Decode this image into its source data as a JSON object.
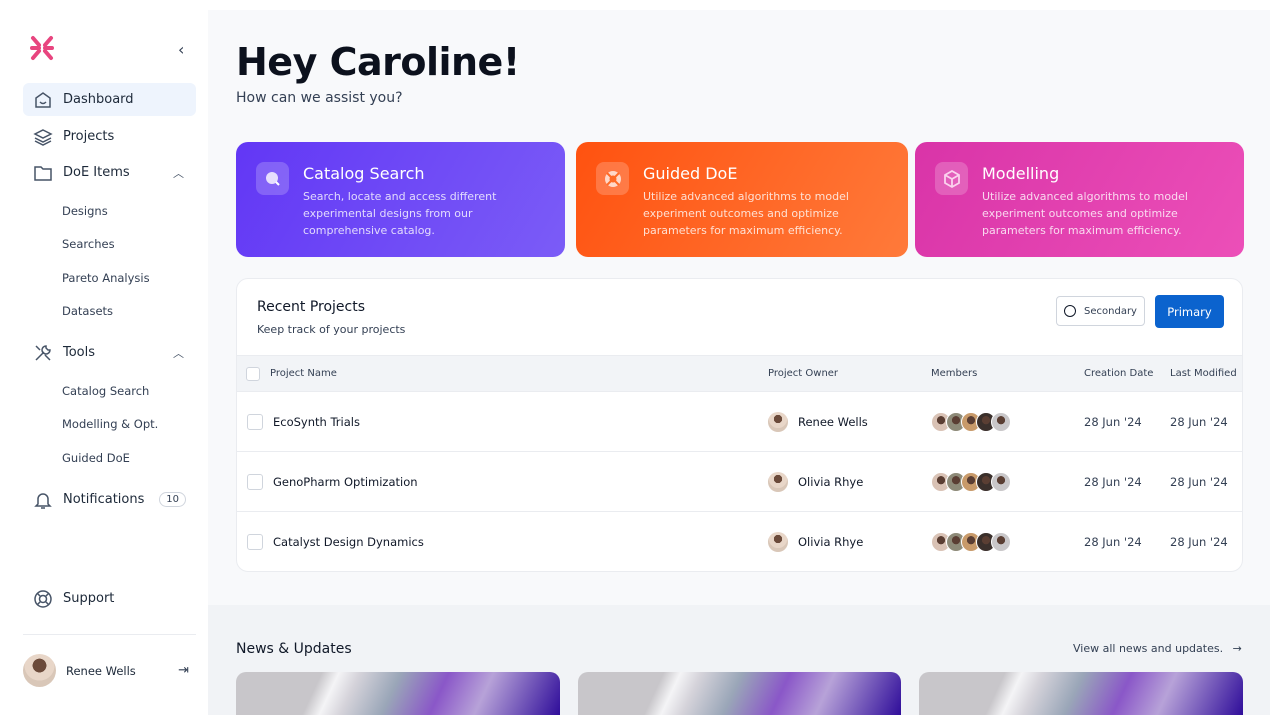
{
  "sidebar": {
    "nav": [
      {
        "label": "Dashboard",
        "icon": "home-icon"
      },
      {
        "label": "Projects",
        "icon": "layers-icon"
      },
      {
        "label": "DoE Items",
        "icon": "folder-icon"
      },
      {
        "label": "Tools",
        "icon": "tools-icon"
      },
      {
        "label": "Notifications",
        "icon": "bell-icon",
        "badge": "10"
      },
      {
        "label": "Support",
        "icon": "lifebuoy-icon"
      }
    ],
    "doe_items": [
      "Designs",
      "Searches",
      "Pareto Analysis",
      "Datasets"
    ],
    "tools": [
      "Catalog Search",
      "Modelling & Opt.",
      "Guided DoE"
    ],
    "user": "Renee Wells"
  },
  "header": {
    "title": "Hey Caroline!",
    "subtitle": "How can we assist you?"
  },
  "cards": [
    {
      "title": "Catalog Search",
      "desc": "Search, locate and access different experimental designs from our comprehensive catalog.",
      "color": "#6a45f5"
    },
    {
      "title": "Guided DoE",
      "desc": "Utilize advanced algorithms to model experiment outcomes and optimize parameters for maximum efficiency.",
      "color": "#ff5a14"
    },
    {
      "title": "Modelling",
      "desc": "Utilize advanced algorithms to model experiment outcomes and optimize parameters for maximum efficiency.",
      "color": "#e23ba8"
    }
  ],
  "projects": {
    "title": "Recent Projects",
    "subtitle": "Keep track of your projects",
    "secondary": "Secondary",
    "primary": "Primary",
    "columns": [
      "Project Name",
      "Project Owner",
      "Members",
      "Creation Date",
      "Last Modified"
    ],
    "rows": [
      {
        "name": "EcoSynth Trials",
        "owner": "Renee Wells",
        "created": "28 Jun '24",
        "modified": "28 Jun '24"
      },
      {
        "name": "GenoPharm Optimization",
        "owner": "Olivia Rhye",
        "created": "28 Jun '24",
        "modified": "28 Jun '24"
      },
      {
        "name": "Catalyst Design Dynamics",
        "owner": "Olivia Rhye",
        "created": "28 Jun '24",
        "modified": "28 Jun '24"
      }
    ]
  },
  "news": {
    "title": "News & Updates",
    "link": "View all news and updates.",
    "arrow": "→"
  }
}
